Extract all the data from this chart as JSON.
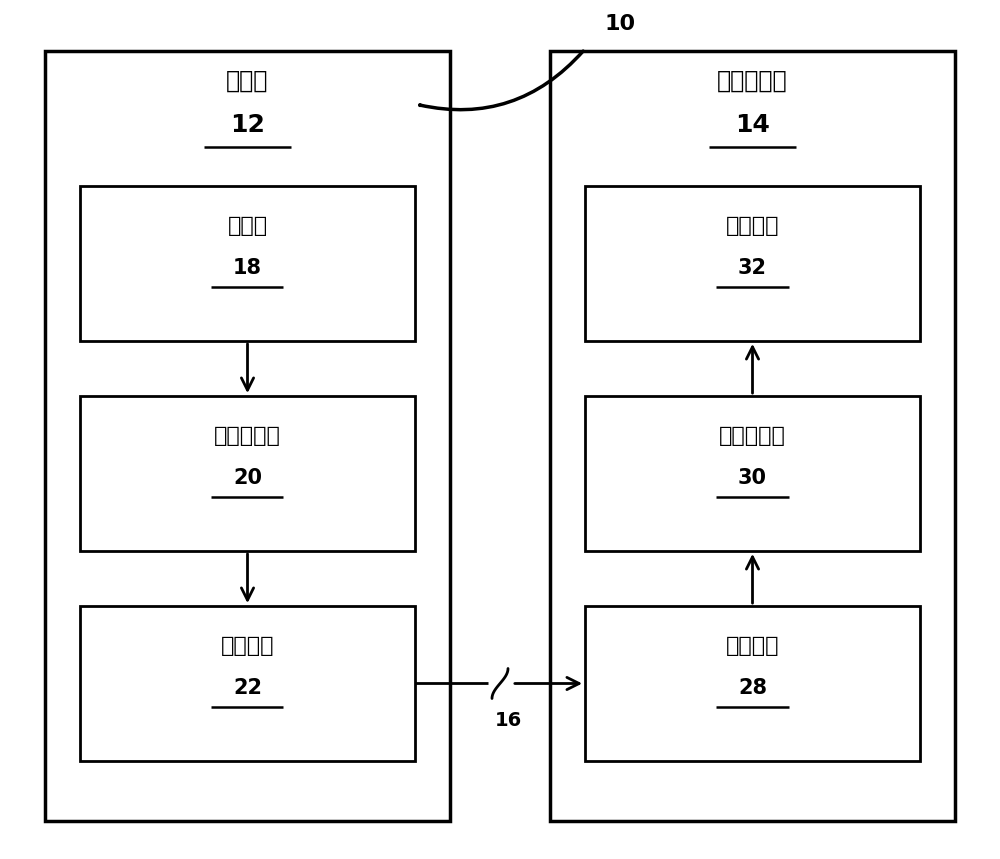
{
  "fig_width": 10.0,
  "fig_height": 8.59,
  "bg_color": "#ffffff",
  "text_color": "#000000",
  "label_10": "10",
  "label_16": "16",
  "source_device_label": "源装置",
  "source_device_num": "12",
  "dest_device_label": "目的地装置",
  "dest_device_num": "14",
  "box1_label": "视频源",
  "box1_num": "18",
  "box2_label": "视频编码器",
  "box2_num": "20",
  "box3_label": "输出接口",
  "box3_num": "22",
  "box4_label": "显示装置",
  "box4_num": "32",
  "box5_label": "视频解码器",
  "box5_num": "30",
  "box6_label": "输入接口",
  "box6_num": "28",
  "lw_outer": 2.5,
  "lw_inner": 2.0
}
